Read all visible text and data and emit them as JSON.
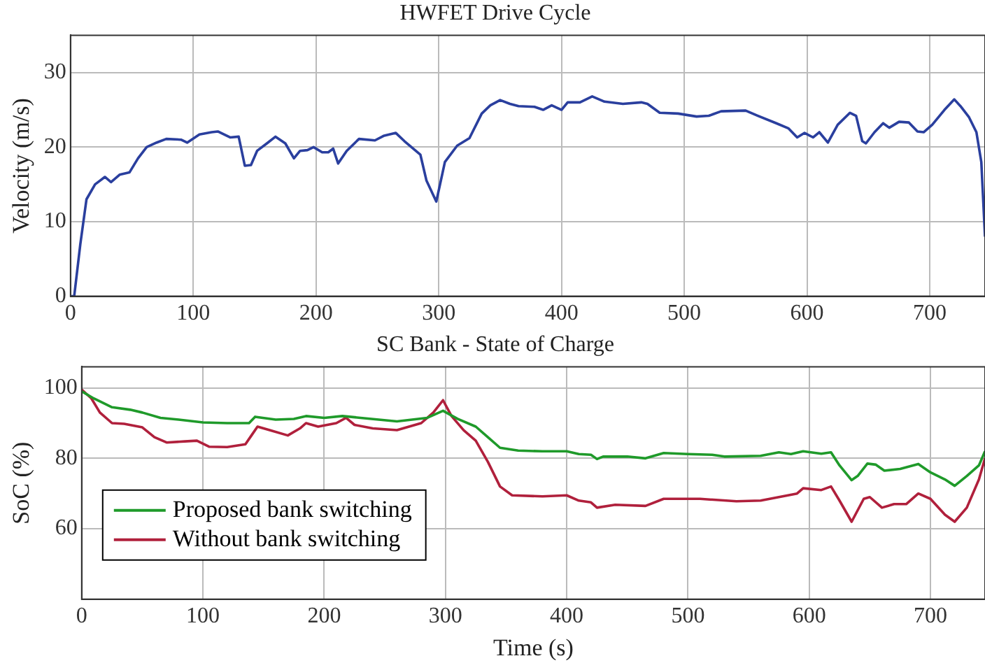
{
  "chart_data": [
    {
      "type": "line",
      "title": "HWFET Drive Cycle",
      "ylabel": "Velocity (m/s)",
      "xlim": [
        0,
        745
      ],
      "xticks": [
        0,
        100,
        200,
        300,
        400,
        500,
        600,
        700
      ],
      "ylim": [
        0,
        35
      ],
      "yticks": [
        0,
        10,
        20,
        30
      ],
      "grid": true,
      "legend": false,
      "x": [
        0,
        3,
        8,
        13,
        20,
        28,
        33,
        40,
        48,
        55,
        62,
        70,
        78,
        90,
        95,
        105,
        115,
        120,
        130,
        137,
        142,
        147,
        152,
        160,
        167,
        175,
        182,
        187,
        193,
        198,
        205,
        210,
        214,
        218,
        225,
        235,
        248,
        255,
        265,
        272,
        285,
        290,
        298,
        305,
        315,
        325,
        335,
        342,
        350,
        358,
        365,
        378,
        385,
        392,
        400,
        405,
        415,
        425,
        435,
        450,
        465,
        470,
        480,
        495,
        510,
        520,
        530,
        550,
        560,
        575,
        585,
        592,
        598,
        605,
        610,
        617,
        625,
        635,
        640,
        645,
        648,
        655,
        662,
        667,
        675,
        683,
        690,
        695,
        702,
        712,
        720,
        725,
        732,
        738,
        742,
        745
      ],
      "series": [
        {
          "color": "#2a3f9e",
          "values": [
            0,
            0,
            7,
            13,
            15,
            16,
            15.3,
            16.3,
            16.6,
            18.5,
            20,
            20.6,
            21.1,
            21,
            20.6,
            21.7,
            22,
            22.1,
            21.3,
            21.4,
            17.5,
            17.6,
            19.5,
            20.5,
            21.4,
            20.5,
            18.5,
            19.5,
            19.6,
            20,
            19.3,
            19.3,
            19.8,
            17.8,
            19.5,
            21.1,
            20.9,
            21.5,
            21.9,
            20.8,
            19,
            15.5,
            12.7,
            18,
            20.2,
            21.2,
            24.5,
            25.6,
            26.3,
            25.8,
            25.5,
            25.4,
            25,
            25.6,
            25,
            26,
            26,
            26.8,
            26.1,
            25.8,
            26,
            25.8,
            24.6,
            24.5,
            24.1,
            24.2,
            24.8,
            24.9,
            24.2,
            23.2,
            22.5,
            21.3,
            21.9,
            21.3,
            22,
            20.6,
            23,
            24.6,
            24.2,
            20.8,
            20.5,
            22,
            23.2,
            22.6,
            23.4,
            23.3,
            22.1,
            22,
            23,
            25,
            26.4,
            25.5,
            24,
            22,
            18,
            8
          ]
        }
      ]
    },
    {
      "type": "line",
      "title": "SC Bank - State of Charge",
      "xlabel": "Time (s)",
      "ylabel": "SoC (%)",
      "xlim": [
        0,
        745
      ],
      "xticks": [
        0,
        100,
        200,
        300,
        400,
        500,
        600,
        700
      ],
      "ylim": [
        40,
        106
      ],
      "yticks": [
        60,
        80,
        100
      ],
      "grid": true,
      "legend": "bottom left",
      "series": [
        {
          "name": "Proposed bank switching",
          "color": "#1f9a2a",
          "x": [
            0,
            10,
            25,
            40,
            50,
            65,
            80,
            100,
            120,
            138,
            143,
            160,
            175,
            185,
            200,
            215,
            230,
            260,
            285,
            298,
            310,
            325,
            335,
            345,
            360,
            380,
            400,
            410,
            420,
            425,
            430,
            450,
            465,
            480,
            500,
            520,
            530,
            560,
            575,
            585,
            595,
            610,
            618,
            625,
            635,
            640,
            648,
            655,
            662,
            675,
            690,
            700,
            712,
            720,
            730,
            740,
            745
          ],
          "values": [
            99,
            97,
            94.5,
            93.8,
            93,
            91.5,
            91,
            90.2,
            90,
            90,
            91.8,
            91,
            91.2,
            92,
            91.5,
            92,
            91.5,
            90.5,
            91.5,
            93.5,
            91.2,
            89,
            86,
            83,
            82.2,
            82,
            82,
            81.2,
            81,
            79.8,
            80.5,
            80.5,
            80,
            81.5,
            81.2,
            81,
            80.5,
            80.7,
            81.7,
            81.2,
            82,
            81.3,
            81.7,
            78,
            73.8,
            75,
            78.5,
            78.2,
            76.5,
            77,
            78.4,
            76,
            74,
            72.2,
            75,
            78,
            82
          ]
        },
        {
          "name": "Without bank switching",
          "color": "#b0203c",
          "x": [
            0,
            8,
            15,
            25,
            35,
            50,
            60,
            70,
            85,
            95,
            105,
            120,
            135,
            140,
            145,
            155,
            170,
            180,
            185,
            195,
            210,
            218,
            225,
            240,
            260,
            280,
            290,
            298,
            305,
            315,
            325,
            335,
            345,
            355,
            380,
            400,
            410,
            420,
            425,
            440,
            465,
            480,
            510,
            540,
            560,
            575,
            590,
            595,
            610,
            618,
            625,
            635,
            645,
            650,
            660,
            670,
            680,
            690,
            700,
            712,
            720,
            730,
            740,
            745
          ],
          "values": [
            99.5,
            97,
            93,
            90,
            89.8,
            88.8,
            86,
            84.5,
            84.8,
            85,
            83.3,
            83.2,
            84,
            86.5,
            89,
            88,
            86.5,
            88.5,
            90,
            89,
            90,
            91.5,
            89.5,
            88.5,
            88,
            90,
            93,
            96.5,
            92,
            88,
            85,
            79,
            72,
            69.5,
            69.2,
            69.5,
            68,
            67.5,
            66,
            66.8,
            66.5,
            68.5,
            68.5,
            67.8,
            68,
            69,
            70,
            71.5,
            71,
            72,
            68,
            62,
            68.5,
            69,
            66,
            67,
            67,
            70,
            68.5,
            64,
            62,
            66,
            74,
            80
          ]
        }
      ]
    }
  ]
}
